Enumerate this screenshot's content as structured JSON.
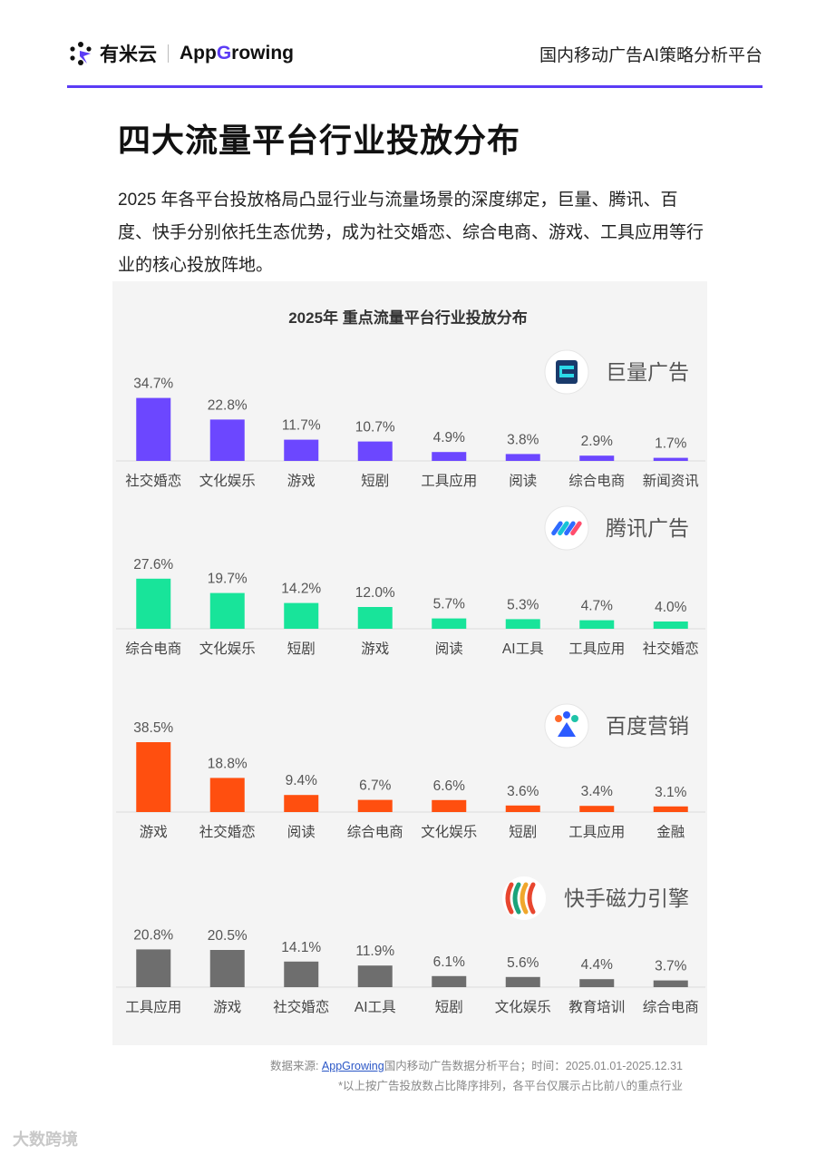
{
  "header": {
    "brand_name": "有米云",
    "brand_app_prefix": "App",
    "brand_app_g": "G",
    "brand_app_suffix": "rowing",
    "tagline": "国内移动广告AI策略分析平台"
  },
  "page": {
    "title": "四大流量平台行业投放分布",
    "intro": "2025 年各平台投放格局凸显行业与流量场景的深度绑定，巨量、腾讯、百度、快手分别依托生态优势，成为社交婚恋、综合电商、游戏、工具应用等行业的核心投放阵地。"
  },
  "chart_title": "2025年 重点流量平台行业投放分布",
  "colors": {
    "accent": "#5b3cf5",
    "juliang": "#6c47ff",
    "tencent": "#18e49a",
    "baidu": "#ff4f0f",
    "kuaishou": "#6e6e6e"
  },
  "chart_data": [
    {
      "type": "bar",
      "platform": "巨量广告",
      "color": "#6c47ff",
      "icon": "juliang-logo-icon",
      "categories": [
        "社交婚恋",
        "文化娱乐",
        "游戏",
        "短剧",
        "工具应用",
        "阅读",
        "综合电商",
        "新闻资讯"
      ],
      "values": [
        34.7,
        22.8,
        11.7,
        10.7,
        4.9,
        3.8,
        2.9,
        1.7
      ],
      "labels": [
        "34.7%",
        "22.8%",
        "11.7%",
        "10.7%",
        "4.9%",
        "3.8%",
        "2.9%",
        "1.7%"
      ],
      "unit": "%"
    },
    {
      "type": "bar",
      "platform": "腾讯广告",
      "color": "#18e49a",
      "icon": "tencent-ads-logo-icon",
      "categories": [
        "综合电商",
        "文化娱乐",
        "短剧",
        "游戏",
        "阅读",
        "AI工具",
        "工具应用",
        "社交婚恋"
      ],
      "values": [
        27.6,
        19.7,
        14.2,
        12.0,
        5.7,
        5.3,
        4.7,
        4.0
      ],
      "labels": [
        "27.6%",
        "19.7%",
        "14.2%",
        "12.0%",
        "5.7%",
        "5.3%",
        "4.7%",
        "4.0%"
      ],
      "unit": "%"
    },
    {
      "type": "bar",
      "platform": "百度营销",
      "color": "#ff4f0f",
      "icon": "baidu-marketing-logo-icon",
      "categories": [
        "游戏",
        "社交婚恋",
        "阅读",
        "综合电商",
        "文化娱乐",
        "短剧",
        "工具应用",
        "金融"
      ],
      "values": [
        38.5,
        18.8,
        9.4,
        6.7,
        6.6,
        3.6,
        3.4,
        3.1
      ],
      "labels": [
        "38.5%",
        "18.8%",
        "9.4%",
        "6.7%",
        "6.6%",
        "3.6%",
        "3.4%",
        "3.1%"
      ],
      "unit": "%"
    },
    {
      "type": "bar",
      "platform": "快手磁力引擎",
      "color": "#6e6e6e",
      "icon": "kuaishou-magnetic-engine-logo-icon",
      "categories": [
        "工具应用",
        "游戏",
        "社交婚恋",
        "AI工具",
        "短剧",
        "文化娱乐",
        "教育培训",
        "综合电商"
      ],
      "values": [
        20.8,
        20.5,
        14.1,
        11.9,
        6.1,
        5.6,
        4.4,
        3.7
      ],
      "labels": [
        "20.8%",
        "20.5%",
        "14.1%",
        "11.9%",
        "6.1%",
        "5.6%",
        "4.4%",
        "3.7%"
      ],
      "unit": "%"
    }
  ],
  "footer": {
    "source_prefix": "数据来源: ",
    "source_link": "AppGrowing",
    "source_suffix": "国内移动广告数据分析平台；时间：2025.01.01-2025.12.31",
    "note": "*以上按广告投放数占比降序排列，各平台仅展示占比前八的重点行业"
  },
  "watermark": "大数跨境"
}
